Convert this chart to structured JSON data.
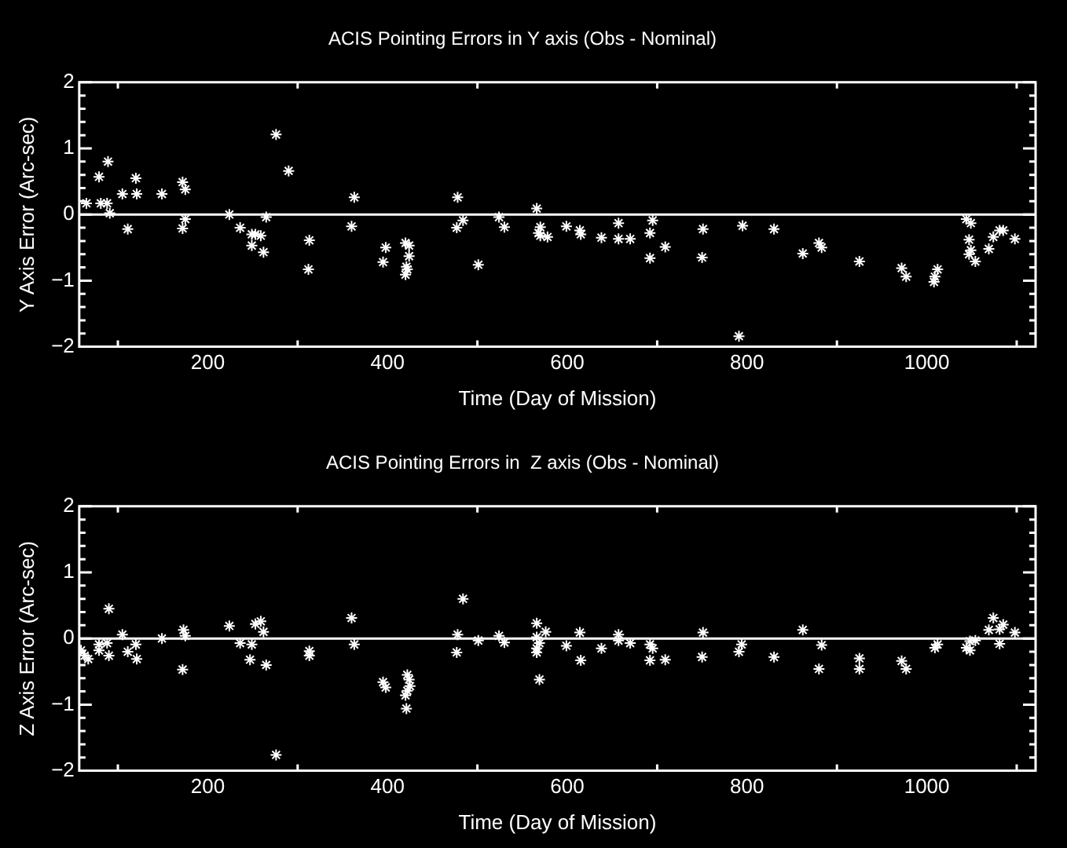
{
  "chart_data": [
    {
      "type": "scatter",
      "title": "ACIS Pointing Errors in Y axis (Obs - Nominal)",
      "xlabel": "Time (Day of Mission)",
      "ylabel": "Y Axis Error (Arc-sec)",
      "color": "#ffffff",
      "marker": "cross",
      "x": [
        65,
        79,
        81,
        88,
        89,
        91,
        105,
        111,
        120,
        121,
        149,
        172,
        172,
        175,
        175,
        224,
        236,
        249,
        249,
        253,
        259,
        262,
        265,
        276,
        290,
        313,
        312,
        363,
        360,
        398,
        395,
        420,
        424,
        424,
        421,
        422,
        420,
        478,
        477,
        484,
        501,
        524,
        530,
        566,
        570,
        568,
        570,
        578,
        599,
        614,
        615,
        638,
        657,
        657,
        670,
        692,
        695,
        692,
        709,
        751,
        750,
        791,
        795,
        830,
        862,
        880,
        883,
        925,
        972,
        977,
        1008,
        1009,
        1012,
        1044,
        1049,
        1047,
        1049,
        1047,
        1054,
        1069,
        1074,
        1081,
        1085,
        1098
      ],
      "values": [
        0.17,
        0.57,
        0.17,
        0.17,
        0.8,
        0.02,
        0.31,
        -0.22,
        0.55,
        0.31,
        0.31,
        0.49,
        -0.21,
        0.38,
        -0.07,
        0,
        -0.2,
        -0.3,
        -0.47,
        -0.3,
        -0.32,
        -0.57,
        -0.04,
        1.21,
        0.66,
        -0.39,
        -0.83,
        0.26,
        -0.18,
        -0.5,
        -0.72,
        -0.43,
        -0.47,
        -0.63,
        -0.79,
        -0.83,
        -0.91,
        0.26,
        -0.2,
        -0.09,
        -0.76,
        -0.04,
        -0.19,
        0.09,
        -0.19,
        -0.28,
        -0.32,
        -0.34,
        -0.18,
        -0.24,
        -0.3,
        -0.35,
        -0.13,
        -0.37,
        -0.37,
        -0.28,
        -0.09,
        -0.66,
        -0.49,
        -0.22,
        -0.65,
        -1.84,
        -0.17,
        -0.22,
        -0.59,
        -0.43,
        -0.5,
        -0.71,
        -0.81,
        -0.94,
        -1.02,
        -0.94,
        -0.83,
        -0.07,
        -0.13,
        -0.38,
        -0.54,
        -0.6,
        -0.71,
        -0.52,
        -0.34,
        -0.24,
        -0.24,
        -0.37
      ],
      "xlim": [
        57,
        1121
      ],
      "ylim": [
        -2,
        2
      ],
      "xticks": [
        {
          "value": 100,
          "label": null
        },
        200,
        {
          "value": 300,
          "label": null
        },
        400,
        {
          "value": 500,
          "label": null
        },
        600,
        {
          "value": 700,
          "label": null
        },
        800,
        {
          "value": 900,
          "label": null
        },
        1000,
        {
          "value": 1100,
          "label": null
        }
      ],
      "yticks": [
        -2,
        {
          "value": -1.8,
          "label": null
        },
        {
          "value": -1.6,
          "label": null
        },
        {
          "value": -1.4,
          "label": null
        },
        {
          "value": -1.2,
          "label": null
        },
        -1,
        {
          "value": -0.8,
          "label": null
        },
        {
          "value": -0.6,
          "label": null
        },
        {
          "value": -0.4,
          "label": null
        },
        {
          "value": -0.2,
          "label": null
        },
        0,
        {
          "value": 0.2,
          "label": null
        },
        {
          "value": 0.4,
          "label": null
        },
        {
          "value": 0.6,
          "label": null
        },
        {
          "value": 0.8,
          "label": null
        },
        1,
        {
          "value": 1.2,
          "label": null
        },
        {
          "value": 1.4,
          "label": null
        },
        {
          "value": 1.6,
          "label": null
        },
        {
          "value": 1.8,
          "label": null
        },
        2
      ],
      "ref_lines": [
        {
          "axis": "y",
          "value": 0,
          "color": "#ffffff"
        }
      ]
    },
    {
      "type": "scatter",
      "title": "ACIS Pointing Errors in  Z axis (Obs - Nominal)",
      "xlabel": "Time (Day of Mission)",
      "ylabel": "Z Axis Error (Arc-sec)",
      "color": "#ffffff",
      "marker": "cross",
      "x": [
        59,
        63,
        67,
        79,
        79,
        88,
        90,
        90,
        105,
        111,
        120,
        121,
        149,
        172,
        173,
        175,
        224,
        236,
        249,
        247,
        253,
        259,
        262,
        265,
        276,
        313,
        313,
        360,
        363,
        395,
        398,
        422,
        424,
        422,
        425,
        420,
        421,
        484,
        478,
        477,
        501,
        524,
        530,
        566,
        566,
        566,
        566,
        569,
        569,
        576,
        599,
        614,
        615,
        638,
        657,
        657,
        670,
        692,
        695,
        692,
        709,
        751,
        750,
        791,
        794,
        830,
        862,
        880,
        883,
        925,
        925,
        972,
        977,
        1009,
        1012,
        1044,
        1048,
        1048,
        1054,
        1069,
        1074,
        1081,
        1081,
        1085,
        1098
      ],
      "values": [
        -0.18,
        -0.26,
        -0.31,
        -0.09,
        -0.18,
        -0.07,
        0.45,
        -0.26,
        0.06,
        -0.2,
        -0.09,
        -0.31,
        0,
        -0.47,
        0.13,
        0.04,
        0.19,
        -0.07,
        -0.09,
        -0.32,
        0.22,
        0.26,
        0.1,
        -0.4,
        -1.76,
        -0.19,
        -0.26,
        0.31,
        -0.09,
        -0.66,
        -0.74,
        -0.55,
        -0.62,
        -0.79,
        -0.72,
        -0.86,
        -1.06,
        0.6,
        0.06,
        -0.21,
        -0.03,
        0.04,
        -0.06,
        0.23,
        0.02,
        -0.15,
        -0.21,
        -0.07,
        -0.62,
        0.1,
        -0.11,
        0.09,
        -0.33,
        -0.15,
        0.06,
        -0.03,
        -0.07,
        -0.09,
        -0.15,
        -0.33,
        -0.32,
        0.09,
        -0.28,
        -0.2,
        -0.09,
        -0.28,
        0.13,
        -0.46,
        -0.1,
        -0.46,
        -0.3,
        -0.34,
        -0.46,
        -0.14,
        -0.09,
        -0.14,
        -0.18,
        -0.04,
        -0.03,
        0.13,
        0.31,
        -0.08,
        0.14,
        0.21,
        0.09
      ],
      "xlim": [
        57,
        1121
      ],
      "ylim": [
        -2,
        2
      ],
      "xticks": [
        {
          "value": 100,
          "label": null
        },
        200,
        {
          "value": 300,
          "label": null
        },
        400,
        {
          "value": 500,
          "label": null
        },
        600,
        {
          "value": 700,
          "label": null
        },
        800,
        {
          "value": 900,
          "label": null
        },
        1000,
        {
          "value": 1100,
          "label": null
        }
      ],
      "yticks": [
        -2,
        {
          "value": -1.8,
          "label": null
        },
        {
          "value": -1.6,
          "label": null
        },
        {
          "value": -1.4,
          "label": null
        },
        {
          "value": -1.2,
          "label": null
        },
        -1,
        {
          "value": -0.8,
          "label": null
        },
        {
          "value": -0.6,
          "label": null
        },
        {
          "value": -0.4,
          "label": null
        },
        {
          "value": -0.2,
          "label": null
        },
        0,
        {
          "value": 0.2,
          "label": null
        },
        {
          "value": 0.4,
          "label": null
        },
        {
          "value": 0.6,
          "label": null
        },
        {
          "value": 0.8,
          "label": null
        },
        1,
        {
          "value": 1.2,
          "label": null
        },
        {
          "value": 1.4,
          "label": null
        },
        {
          "value": 1.6,
          "label": null
        },
        {
          "value": 1.8,
          "label": null
        },
        2
      ],
      "ref_lines": [
        {
          "axis": "y",
          "value": 0,
          "color": "#ffffff"
        }
      ]
    }
  ]
}
